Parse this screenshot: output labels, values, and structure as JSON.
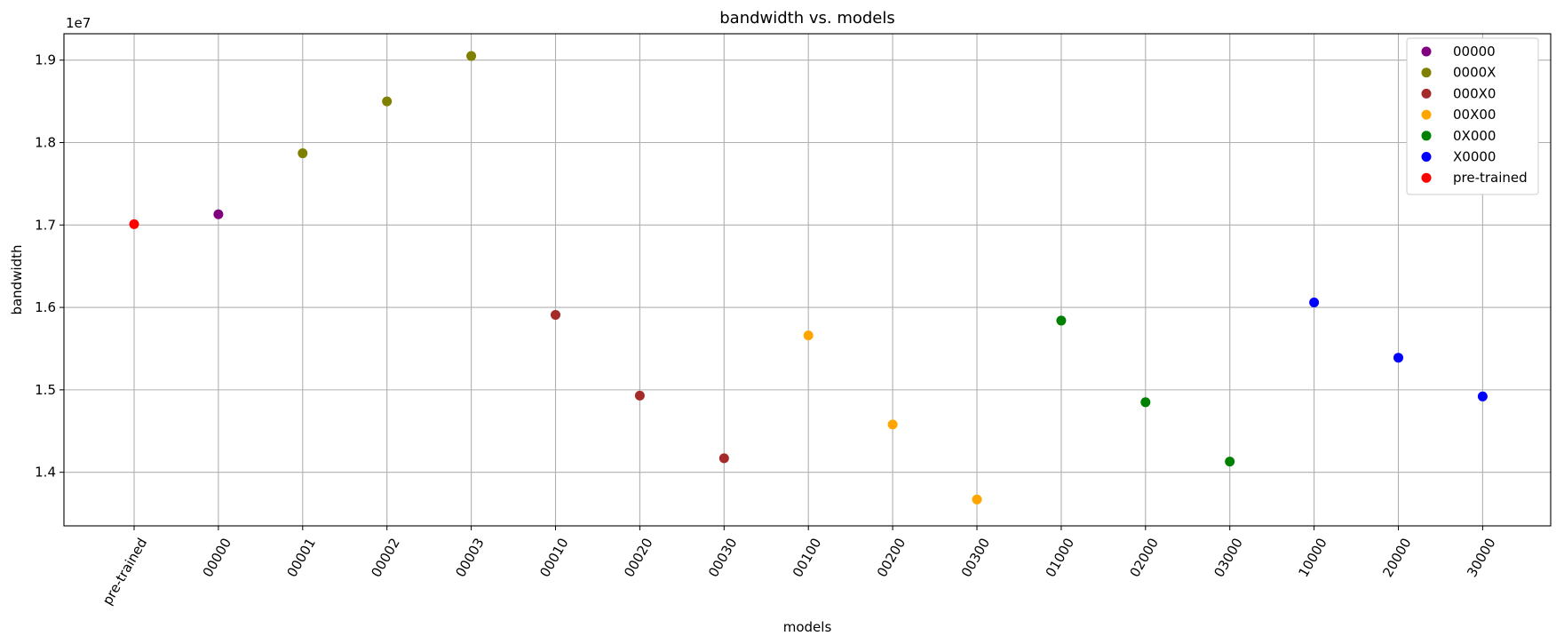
{
  "chart_data": {
    "type": "scatter",
    "title": "bandwidth vs. models",
    "xlabel": "models",
    "ylabel": "bandwidth",
    "y_offset_text": "1e7",
    "y_scale_factor": 10000000,
    "categories": [
      "pre-trained",
      "00000",
      "00001",
      "00002",
      "00003",
      "00010",
      "00020",
      "00030",
      "00100",
      "00200",
      "00300",
      "01000",
      "02000",
      "03000",
      "10000",
      "20000",
      "30000"
    ],
    "ylim": [
      13350000,
      19320000
    ],
    "y_ticks": [
      14000000,
      15000000,
      16000000,
      17000000,
      18000000,
      19000000
    ],
    "y_tick_labels": [
      "1.4",
      "1.5",
      "1.6",
      "1.7",
      "1.8",
      "1.9"
    ],
    "grid": true,
    "legend_position": "top-right",
    "series": [
      {
        "name": "00000",
        "color": "#800080",
        "x": [
          "00000"
        ],
        "values": [
          17130000
        ]
      },
      {
        "name": "0000X",
        "color": "#808000",
        "x": [
          "00001",
          "00002",
          "00003"
        ],
        "values": [
          17870000,
          18500000,
          19050000
        ]
      },
      {
        "name": "000X0",
        "color": "#a52a2a",
        "x": [
          "00010",
          "00020",
          "00030"
        ],
        "values": [
          15910000,
          14930000,
          14170000
        ]
      },
      {
        "name": "00X00",
        "color": "#ffa500",
        "x": [
          "00100",
          "00200",
          "00300"
        ],
        "values": [
          15660000,
          14580000,
          13670000
        ]
      },
      {
        "name": "0X000",
        "color": "#008000",
        "x": [
          "01000",
          "02000",
          "03000"
        ],
        "values": [
          15840000,
          14850000,
          14130000
        ]
      },
      {
        "name": "X0000",
        "color": "#0000ff",
        "x": [
          "10000",
          "20000",
          "30000"
        ],
        "values": [
          16060000,
          15390000,
          14920000
        ]
      },
      {
        "name": "pre-trained",
        "color": "#ff0000",
        "x": [
          "pre-trained"
        ],
        "values": [
          17010000
        ]
      }
    ]
  }
}
